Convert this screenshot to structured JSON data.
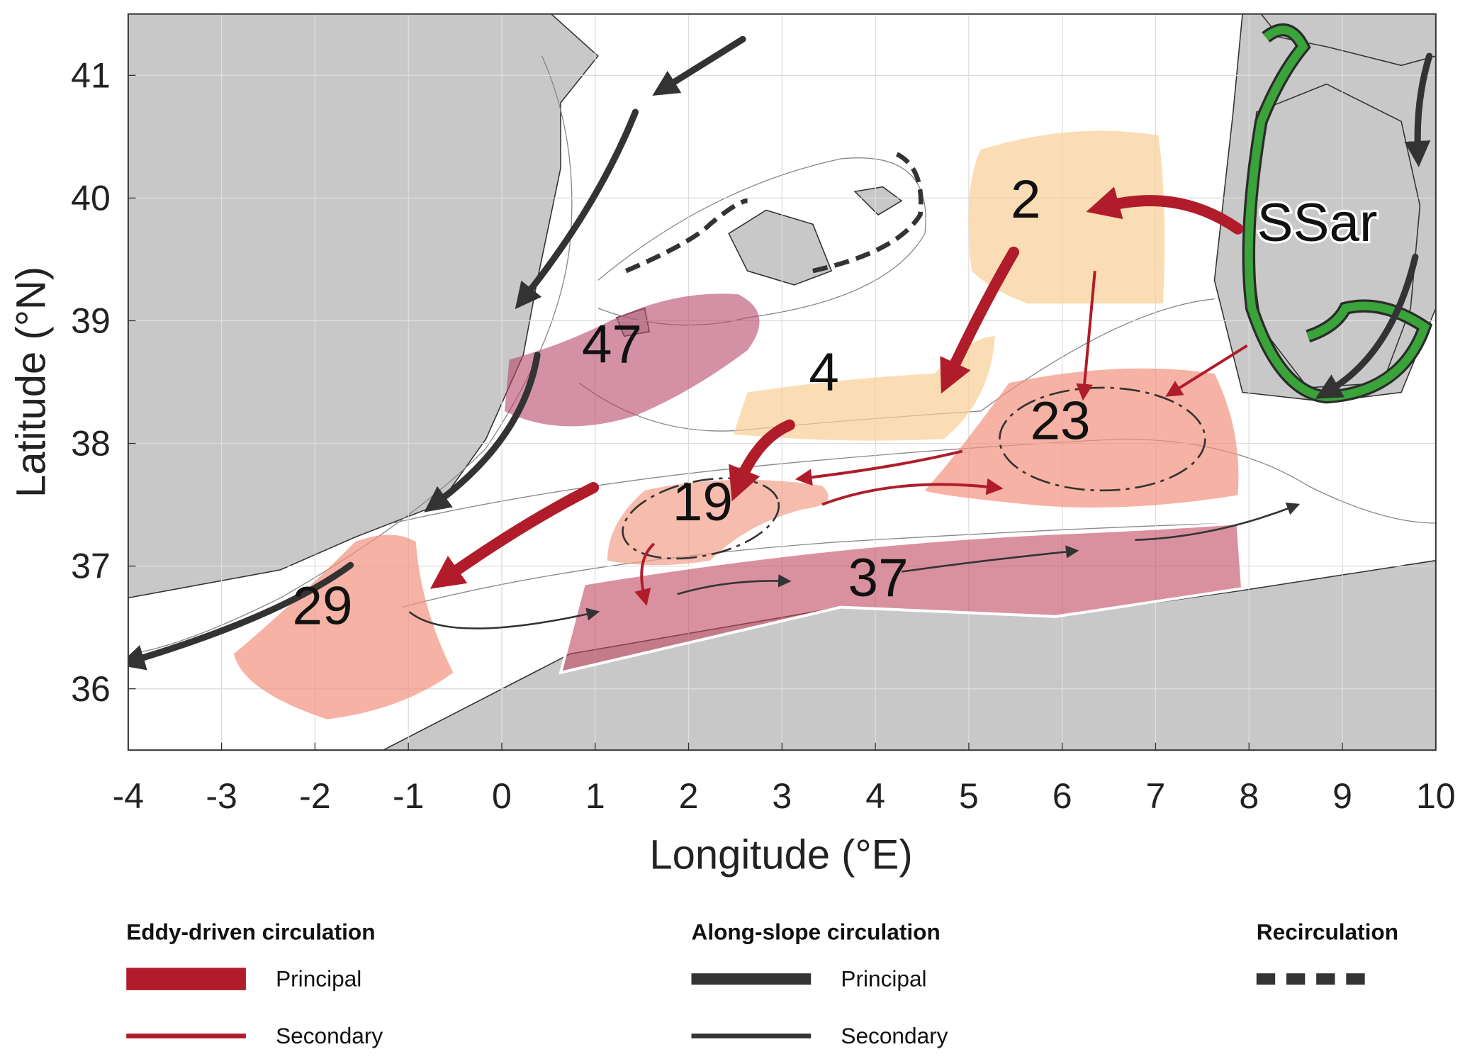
{
  "map": {
    "xlabel": "Longitude (°E)",
    "ylabel": "Latitude (°N)",
    "xlim": [
      -4,
      10
    ],
    "ylim": [
      35.5,
      41.5
    ],
    "xticks": [
      -4,
      -3,
      -2,
      -1,
      0,
      1,
      2,
      3,
      4,
      5,
      6,
      7,
      8,
      9,
      10
    ],
    "yticks": [
      36,
      37,
      38,
      39,
      40,
      41
    ],
    "grid": true,
    "labels": [
      "47",
      "4",
      "2",
      "23",
      "19",
      "29",
      "37",
      "SSar"
    ],
    "legend": [
      {
        "title": "Eddy-driven circulation",
        "items": [
          "Principal",
          "Secondary"
        ]
      },
      {
        "title": "Along-slope circulation",
        "items": [
          "Principal",
          "Secondary"
        ]
      },
      {
        "title": "Recirculation"
      }
    ]
  }
}
